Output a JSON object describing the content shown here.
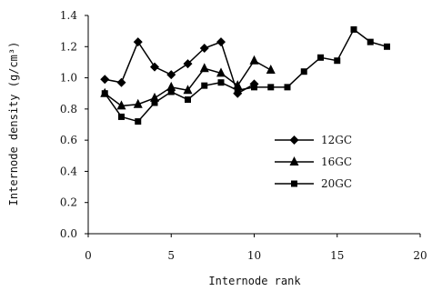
{
  "chart_data": {
    "type": "line",
    "xlabel": "Internode rank",
    "ylabel": "Internode density (g/cm³)",
    "xlim": [
      0,
      20
    ],
    "ylim": [
      0.0,
      1.4
    ],
    "xticks": [
      "0",
      "5",
      "10",
      "15",
      "20"
    ],
    "yticks": [
      "0.0",
      "0.2",
      "0.4",
      "0.6",
      "0.8",
      "1.0",
      "1.2",
      "1.4"
    ],
    "grid": false,
    "legend_position": "right",
    "series": [
      {
        "name": "12GC",
        "marker": "diamond",
        "x": [
          1,
          2,
          3,
          4,
          5,
          6,
          7,
          8,
          9,
          10
        ],
        "y": [
          0.99,
          0.97,
          1.23,
          1.07,
          1.02,
          1.09,
          1.19,
          1.23,
          0.9,
          0.96
        ]
      },
      {
        "name": "16GC",
        "marker": "triangle",
        "x": [
          1,
          2,
          3,
          4,
          5,
          6,
          7,
          8,
          9,
          10,
          11
        ],
        "y": [
          0.9,
          0.82,
          0.83,
          0.87,
          0.94,
          0.92,
          1.06,
          1.03,
          0.95,
          1.11,
          1.05
        ]
      },
      {
        "name": "20GC",
        "marker": "square",
        "x": [
          1,
          2,
          3,
          4,
          5,
          6,
          7,
          8,
          9,
          10,
          11,
          12,
          13,
          14,
          15,
          16,
          17,
          18
        ],
        "y": [
          0.9,
          0.75,
          0.72,
          0.84,
          0.91,
          0.86,
          0.95,
          0.97,
          0.92,
          0.94,
          0.94,
          0.94,
          1.04,
          1.13,
          1.11,
          1.31,
          1.23,
          1.2
        ]
      }
    ],
    "colors": {
      "line": "#000000",
      "axis": "#000000"
    }
  }
}
